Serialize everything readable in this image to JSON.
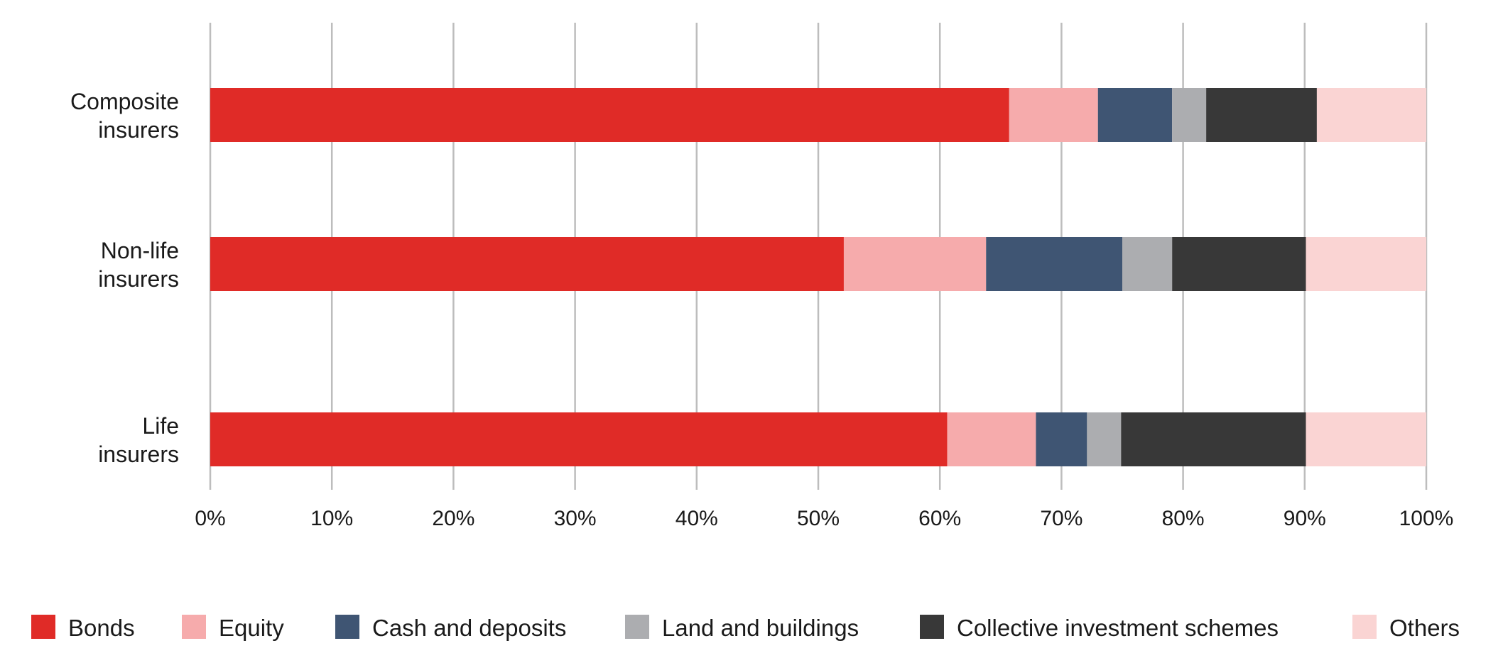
{
  "chart_data": {
    "type": "bar",
    "orientation": "horizontal",
    "stacked": true,
    "categories": [
      [
        "Composite",
        "insurers"
      ],
      [
        "Non-life",
        "insurers"
      ],
      [
        "Life",
        "insurers"
      ]
    ],
    "series": [
      {
        "name": "Bonds",
        "color": "#e02b27",
        "values": [
          65.7,
          52.1,
          60.6
        ]
      },
      {
        "name": "Equity",
        "color": "#f6abac",
        "values": [
          7.3,
          11.7,
          7.3
        ]
      },
      {
        "name": "Cash and deposits",
        "color": "#3f5573",
        "values": [
          6.1,
          11.2,
          4.2
        ]
      },
      {
        "name": "Land and buildings",
        "color": "#acadb0",
        "values": [
          2.8,
          4.1,
          2.8
        ]
      },
      {
        "name": "Collective investment schemes",
        "color": "#383838",
        "values": [
          9.1,
          11.0,
          15.2
        ]
      },
      {
        "name": "Others",
        "color": "#fad4d3",
        "values": [
          9.0,
          9.9,
          9.9
        ]
      }
    ],
    "xlim": [
      0,
      100
    ],
    "xticks": [
      "0%",
      "10%",
      "20%",
      "30%",
      "40%",
      "50%",
      "60%",
      "70%",
      "80%",
      "90%",
      "100%"
    ],
    "grid": true,
    "legend_position": "bottom",
    "title": "",
    "xlabel": "",
    "ylabel": ""
  }
}
